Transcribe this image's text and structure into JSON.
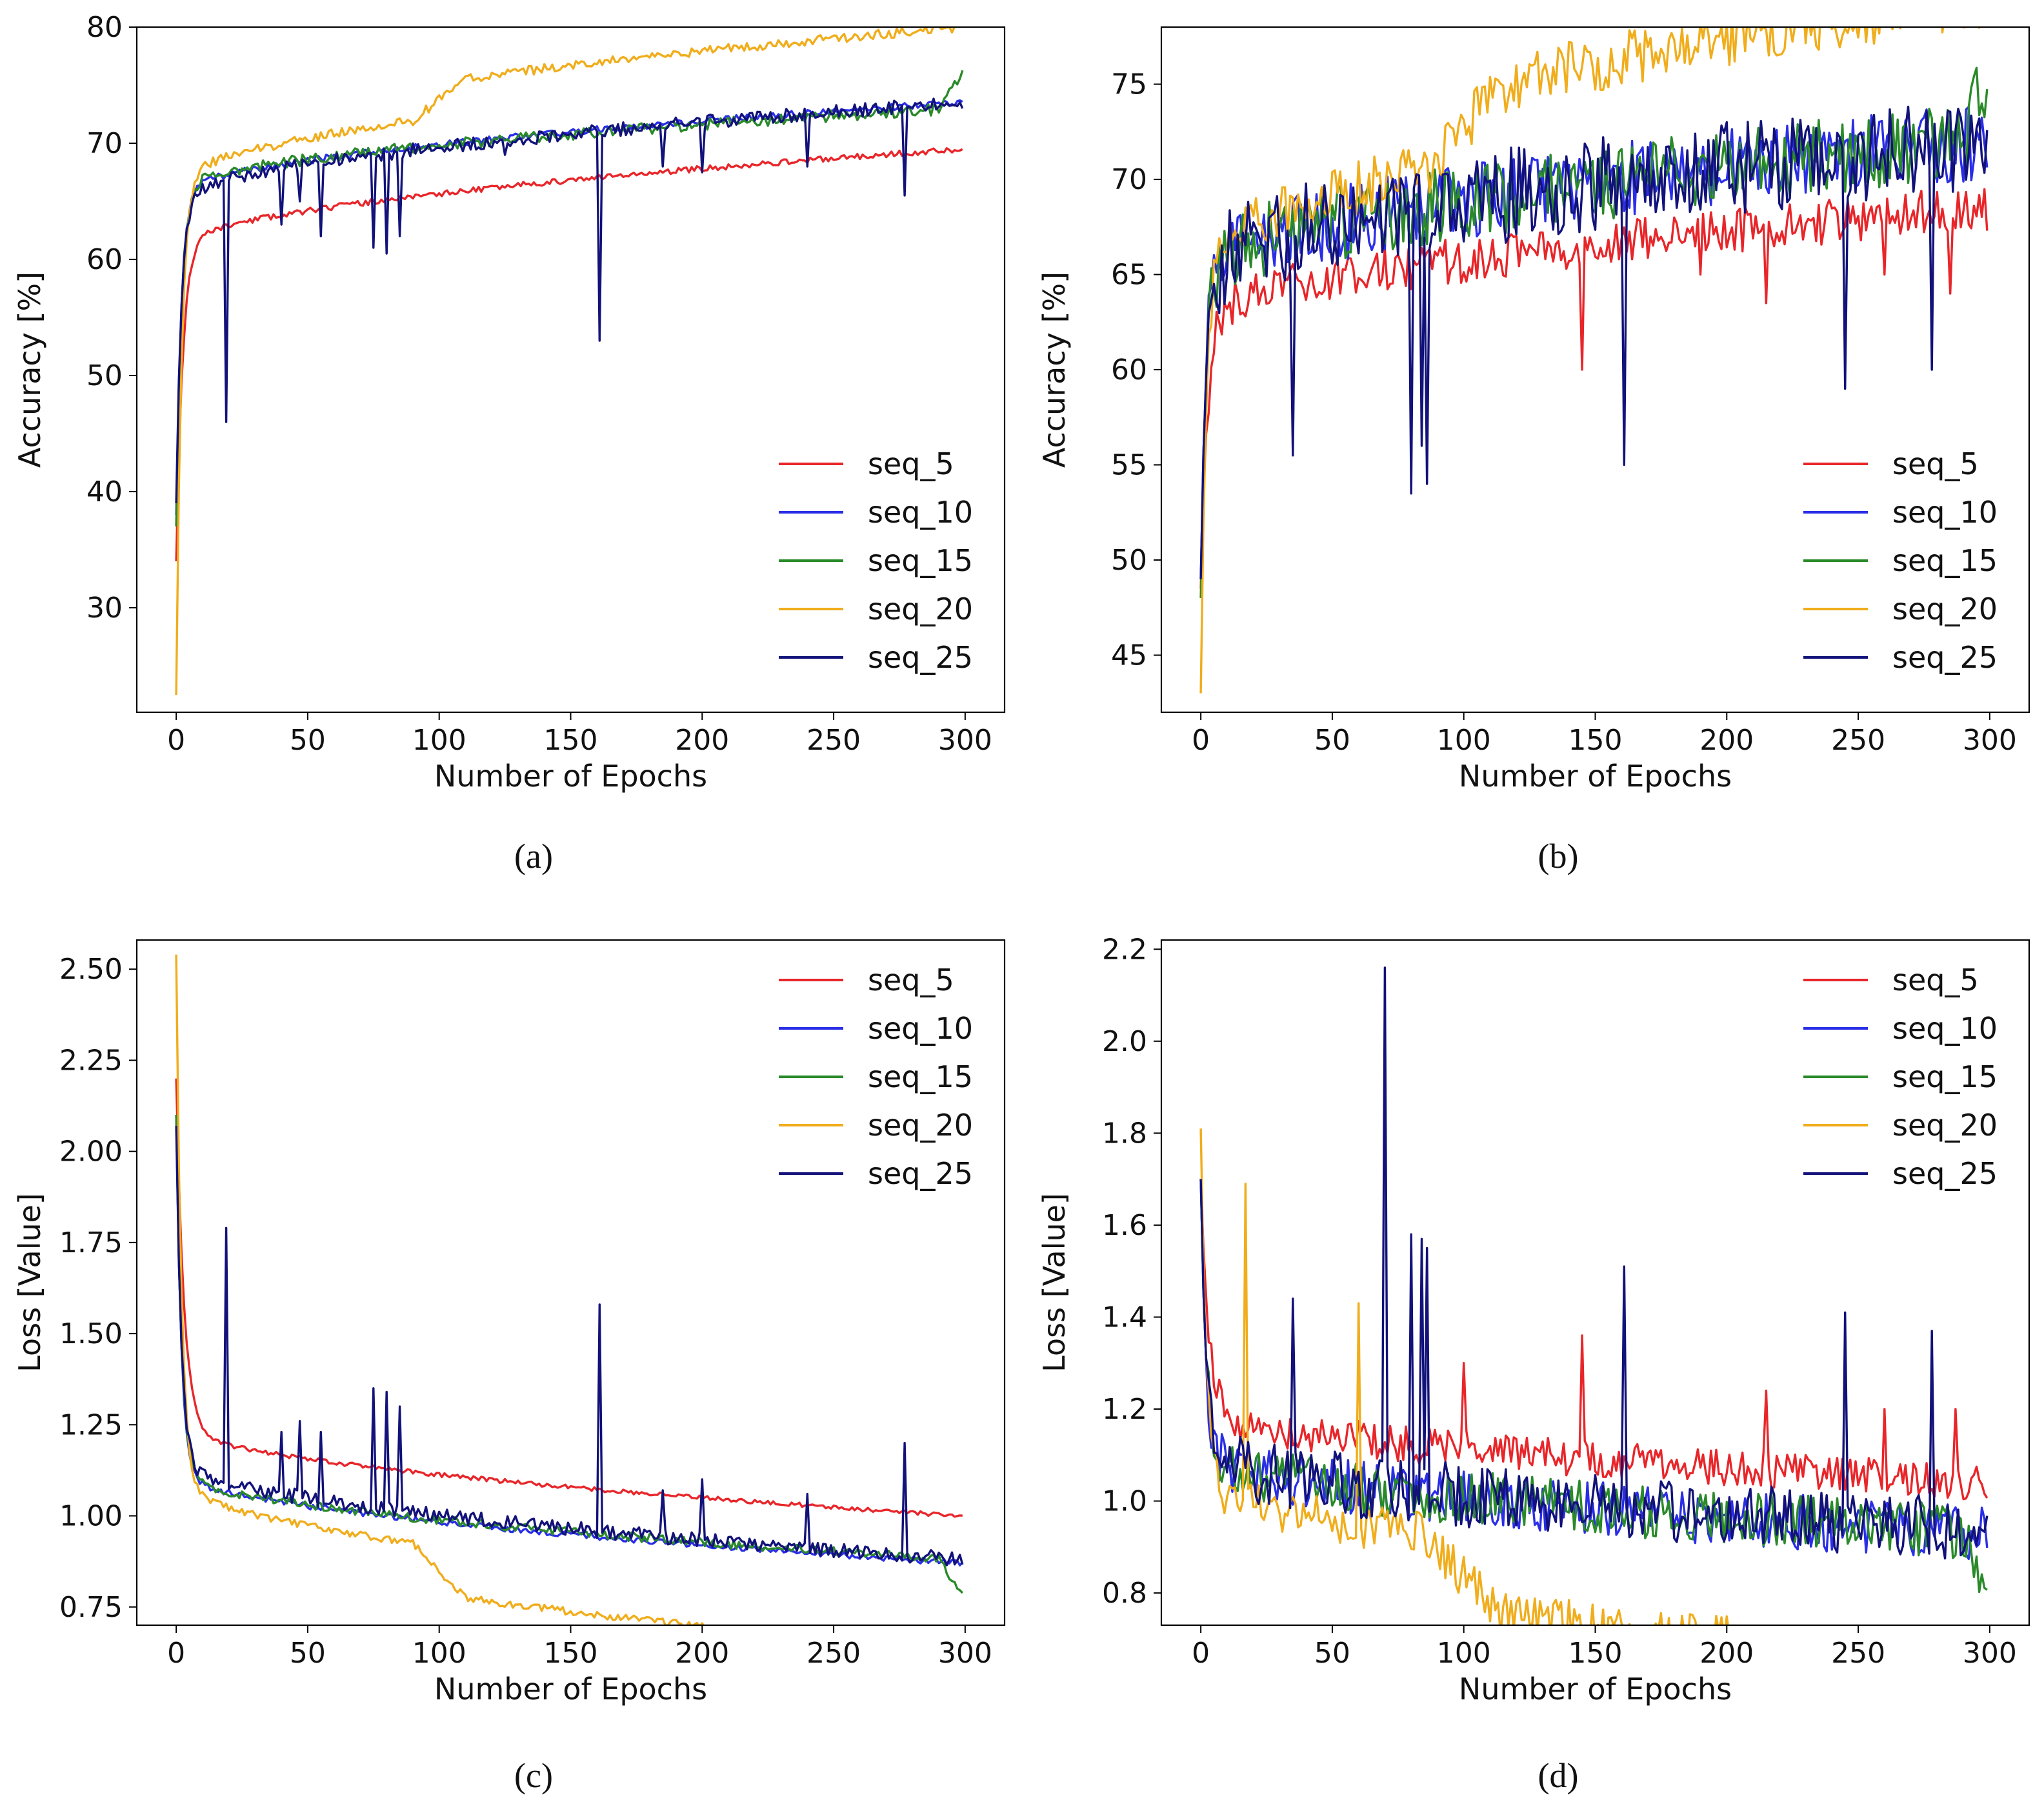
{
  "colors": {
    "seq_5": "#e8262a",
    "seq_10": "#2a2ee6",
    "seq_15": "#2a8a2a",
    "seq_20": "#f0ad1c",
    "seq_25": "#12127a"
  },
  "chart_data": [
    {
      "id": "a",
      "type": "line",
      "caption": "(a)",
      "xlabel": "Number of Epochs",
      "ylabel": "Accuracy [%]",
      "xlim": [
        -15,
        315
      ],
      "ylim": [
        21,
        80
      ],
      "xticks": [
        0,
        50,
        100,
        150,
        200,
        250,
        300
      ],
      "yticks": [
        30,
        40,
        50,
        60,
        70,
        80
      ],
      "ytick_labels": [
        "30",
        "40",
        "50",
        "60",
        "70",
        "80"
      ],
      "legend": "lower-right",
      "series": [
        {
          "name": "seq_5",
          "start": 34,
          "plateau": 61.0,
          "end": 69.5,
          "k": 2.5,
          "noise": 0.25,
          "seed": 11
        },
        {
          "name": "seq_10",
          "start": 38,
          "plateau": 65.5,
          "end": 73.5,
          "k": 2.0,
          "noise": 0.3,
          "seed": 12
        },
        {
          "name": "seq_15",
          "start": 37,
          "plateau": 66.0,
          "end": 73.0,
          "k": 2.0,
          "noise": 0.5,
          "seed": 13,
          "end_tail": 76.0
        },
        {
          "name": "seq_20",
          "start": 22.5,
          "plateau": 66.5,
          "end": 77.0,
          "k": 2.0,
          "noise": 0.4,
          "seed": 14,
          "rise": [
            90,
            110,
            3.0
          ]
        },
        {
          "name": "seq_25",
          "start": 39,
          "plateau": 65.0,
          "end": 73.5,
          "k": 2.0,
          "noise": 0.6,
          "seed": 15,
          "spikes": [
            [
              19,
              46
            ],
            [
              40,
              63
            ],
            [
              47,
              65
            ],
            [
              55,
              62
            ],
            [
              75,
              61
            ],
            [
              80,
              60.5
            ],
            [
              85,
              62
            ],
            [
              125,
              69
            ],
            [
              161,
              53
            ],
            [
              185,
              68
            ],
            [
              200,
              67.5
            ],
            [
              240,
              68
            ],
            [
              277,
              65.5
            ]
          ]
        }
      ]
    },
    {
      "id": "b",
      "type": "line",
      "caption": "(b)",
      "xlabel": "Number of Epochs",
      "ylabel": "Accuracy [%]",
      "xlim": [
        -15,
        315
      ],
      "ylim": [
        42,
        78
      ],
      "xticks": [
        0,
        50,
        100,
        150,
        200,
        250,
        300
      ],
      "yticks": [
        45,
        50,
        55,
        60,
        65,
        70,
        75
      ],
      "ytick_labels": [
        "45",
        "50",
        "55",
        "60",
        "65",
        "70",
        "75"
      ],
      "legend": "lower-right",
      "series": [
        {
          "name": "seq_5",
          "start": 48.5,
          "plateau": 62.5,
          "end": 68.5,
          "k": 2.5,
          "noise": 1.2,
          "seed": 21,
          "spikes": [
            [
              145,
              60
            ],
            [
              190,
              65
            ],
            [
              215,
              63.5
            ],
            [
              260,
              65
            ],
            [
              285,
              64
            ]
          ]
        },
        {
          "name": "seq_10",
          "start": 49,
          "plateau": 65.0,
          "end": 72.0,
          "k": 2.0,
          "noise": 2.0,
          "seed": 22
        },
        {
          "name": "seq_15",
          "start": 48,
          "plateau": 65.0,
          "end": 72.0,
          "k": 2.0,
          "noise": 2.0,
          "seed": 23,
          "end_tail": 75.5
        },
        {
          "name": "seq_20",
          "start": 43,
          "plateau": 65.0,
          "end": 76.0,
          "k": 2.0,
          "noise": 1.5,
          "seed": 24,
          "rise": [
            85,
            115,
            3.5
          ]
        },
        {
          "name": "seq_25",
          "start": 49,
          "plateau": 65.0,
          "end": 72.0,
          "k": 2.0,
          "noise": 2.5,
          "seed": 25,
          "spikes": [
            [
              35,
              55.5
            ],
            [
              80,
              53.5
            ],
            [
              84,
              56
            ],
            [
              86,
              54
            ],
            [
              161,
              55
            ],
            [
              245,
              59
            ],
            [
              278,
              60
            ]
          ]
        }
      ]
    },
    {
      "id": "c",
      "type": "line",
      "caption": "(c)",
      "xlabel": "Number of Epochs",
      "ylabel": "Loss [Value]",
      "xlim": [
        -15,
        315
      ],
      "ylim": [
        0.7,
        2.58
      ],
      "xticks": [
        0,
        50,
        100,
        150,
        200,
        250,
        300
      ],
      "yticks": [
        0.75,
        1.0,
        1.25,
        1.5,
        1.75,
        2.0,
        2.25,
        2.5
      ],
      "ytick_labels": [
        "0.75",
        "1.00",
        "1.25",
        "1.50",
        "1.75",
        "2.00",
        "2.25",
        "2.50"
      ],
      "legend": "top-right",
      "series": [
        {
          "name": "seq_5",
          "start": 2.2,
          "plateau": 1.25,
          "end": 1.0,
          "k": 3.0,
          "noise": 0.006,
          "seed": 31
        },
        {
          "name": "seq_10",
          "start": 2.1,
          "plateau": 1.12,
          "end": 0.87,
          "k": 2.0,
          "noise": 0.008,
          "seed": 32
        },
        {
          "name": "seq_15",
          "start": 2.1,
          "plateau": 1.12,
          "end": 0.88,
          "k": 2.0,
          "noise": 0.012,
          "seed": 33,
          "end_tail": 0.78
        },
        {
          "name": "seq_20",
          "start": 2.54,
          "plateau": 1.1,
          "end": 0.76,
          "k": 2.0,
          "noise": 0.01,
          "seed": 34,
          "rise": [
            90,
            110,
            -0.13
          ]
        },
        {
          "name": "seq_25",
          "start": 2.07,
          "plateau": 1.15,
          "end": 0.88,
          "k": 2.0,
          "noise": 0.02,
          "seed": 35,
          "spikes": [
            [
              19,
              1.79
            ],
            [
              40,
              1.23
            ],
            [
              47,
              1.26
            ],
            [
              55,
              1.23
            ],
            [
              75,
              1.35
            ],
            [
              80,
              1.34
            ],
            [
              85,
              1.3
            ],
            [
              161,
              1.58
            ],
            [
              185,
              1.07
            ],
            [
              200,
              1.1
            ],
            [
              240,
              1.06
            ],
            [
              277,
              1.2
            ]
          ]
        }
      ]
    },
    {
      "id": "d",
      "type": "line",
      "caption": "(d)",
      "xlabel": "Number of Epochs",
      "ylabel": "Loss [Value]",
      "xlim": [
        -15,
        315
      ],
      "ylim": [
        0.73,
        2.22
      ],
      "xticks": [
        0,
        50,
        100,
        150,
        200,
        250,
        300
      ],
      "yticks": [
        0.8,
        1.0,
        1.2,
        1.4,
        1.6,
        1.8,
        2.0,
        2.2
      ],
      "ytick_labels": [
        "0.8",
        "1.0",
        "1.2",
        "1.4",
        "1.6",
        "1.8",
        "2.0",
        "2.2"
      ],
      "legend": "top-right",
      "series": [
        {
          "name": "seq_5",
          "start": 1.7,
          "plateau": 1.2,
          "end": 1.04,
          "k": 3.0,
          "noise": 0.04,
          "seed": 41,
          "spikes": [
            [
              100,
              1.3
            ],
            [
              145,
              1.36
            ],
            [
              215,
              1.24
            ],
            [
              260,
              1.2
            ],
            [
              287,
              1.2
            ]
          ]
        },
        {
          "name": "seq_10",
          "start": 1.7,
          "plateau": 1.1,
          "end": 0.93,
          "k": 2.0,
          "noise": 0.06,
          "seed": 42
        },
        {
          "name": "seq_15",
          "start": 1.7,
          "plateau": 1.1,
          "end": 0.93,
          "k": 2.0,
          "noise": 0.06,
          "seed": 43,
          "end_tail": 0.82
        },
        {
          "name": "seq_20",
          "start": 1.81,
          "plateau": 1.05,
          "end": 0.8,
          "k": 2.0,
          "noise": 0.05,
          "seed": 44,
          "rise": [
            85,
            115,
            -0.15
          ],
          "spikes": [
            [
              17,
              1.69
            ],
            [
              60,
              1.43
            ]
          ]
        },
        {
          "name": "seq_25",
          "start": 1.7,
          "plateau": 1.1,
          "end": 0.94,
          "k": 2.0,
          "noise": 0.07,
          "seed": 45,
          "spikes": [
            [
              35,
              1.44
            ],
            [
              70,
              2.16
            ],
            [
              80,
              1.58
            ],
            [
              84,
              1.57
            ],
            [
              86,
              1.55
            ],
            [
              161,
              1.51
            ],
            [
              245,
              1.41
            ],
            [
              278,
              1.37
            ]
          ]
        }
      ]
    }
  ]
}
